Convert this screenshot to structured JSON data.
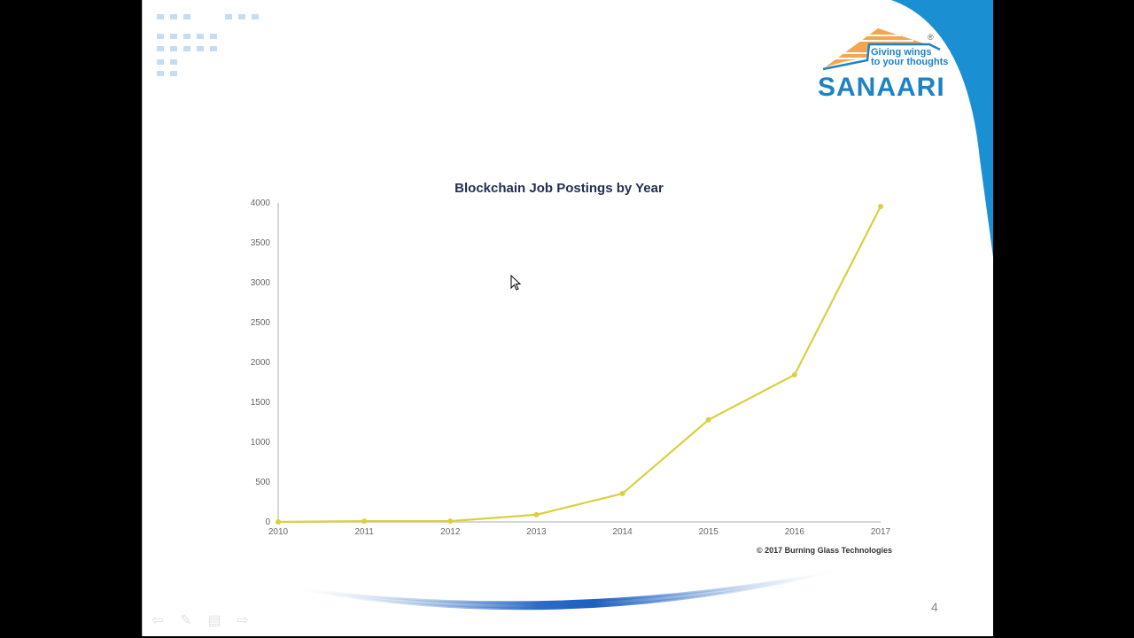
{
  "slide": {
    "page_number": "4",
    "logo": {
      "tagline_line1": "Giving wings",
      "tagline_line2": "to your thoughts",
      "name": "SANAARI",
      "registered": "®",
      "brand_blue": "#1d83c6",
      "brand_orange": "#f0a04b"
    },
    "credit": "© 2017 Burning Glass Technologies",
    "nav_icons": [
      "arrow-left-icon",
      "pen-icon",
      "menu-icon",
      "arrow-right-icon"
    ]
  },
  "chart_data": {
    "type": "line",
    "title": "Blockchain Job Postings by Year",
    "xlabel": "",
    "ylabel": "",
    "categories": [
      "2010",
      "2011",
      "2012",
      "2013",
      "2014",
      "2015",
      "2016",
      "2017"
    ],
    "series": [
      {
        "name": "Job Postings",
        "color": "#d9d040",
        "values": [
          0,
          10,
          10,
          90,
          355,
          1280,
          1845,
          3955
        ]
      }
    ],
    "y_ticks": [
      "0",
      "500",
      "1000",
      "1500",
      "2000",
      "2500",
      "3000",
      "3500",
      "4000"
    ],
    "ylim": [
      0,
      4000
    ],
    "grid": false,
    "legend": "none"
  }
}
